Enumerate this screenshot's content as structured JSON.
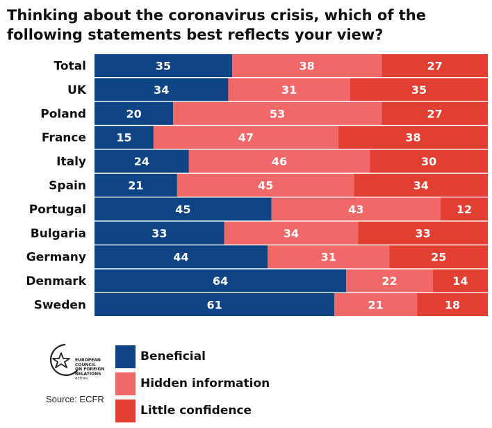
{
  "chart_data": {
    "type": "bar",
    "orientation": "horizontal",
    "stacked": true,
    "title": "Thinking about the coronavirus crisis, which of the following statements best reflects your view?",
    "categories": [
      "Total",
      "UK",
      "Poland",
      "France",
      "Italy",
      "Spain",
      "Portugal",
      "Bulgaria",
      "Germany",
      "Denmark",
      "Sweden"
    ],
    "series": [
      {
        "name": "Beneficial",
        "color": "#0e4483",
        "values": [
          35,
          34,
          20,
          15,
          24,
          21,
          45,
          33,
          44,
          64,
          61
        ]
      },
      {
        "name": "Hidden information",
        "color": "#f06868",
        "values": [
          38,
          31,
          53,
          47,
          46,
          45,
          43,
          34,
          31,
          22,
          21
        ]
      },
      {
        "name": "Little confidence",
        "color": "#e13f32",
        "values": [
          27,
          35,
          27,
          38,
          30,
          34,
          12,
          33,
          25,
          14,
          18
        ]
      }
    ],
    "xlim": [
      0,
      100
    ],
    "legend_position": "bottom-left",
    "grid": false
  },
  "logo": {
    "lines": [
      "EUROPEAN",
      "COUNCIL",
      "ON FOREIGN",
      "RELATIONS"
    ],
    "site": "ecfr.eu"
  },
  "source": "Source: ECFR"
}
